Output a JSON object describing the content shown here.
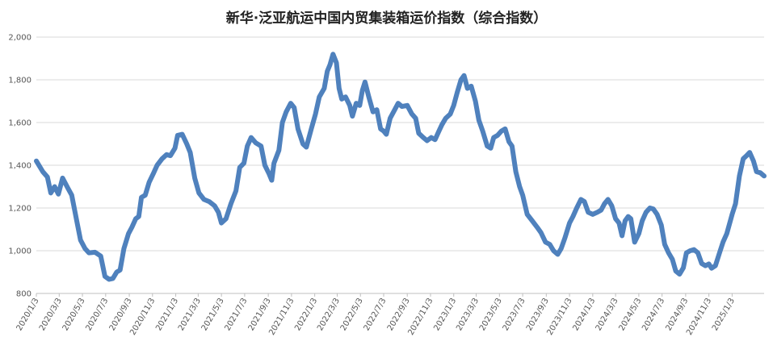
{
  "chart_data": {
    "type": "line",
    "title": "新华·泛亚航运中国内贸集装箱运价指数（综合指数）",
    "xlabel": "",
    "ylabel": "",
    "ylim": [
      800,
      2000
    ],
    "yticks": [
      "800",
      "1,000",
      "1,200",
      "1,400",
      "1,600",
      "1,800",
      "2,000"
    ],
    "xticks": [
      "2020/1/3",
      "2020/3/3",
      "2020/5/3",
      "2020/7/3",
      "2020/9/3",
      "2020/11/3",
      "2021/1/3",
      "2021/3/3",
      "2021/5/3",
      "2021/7/3",
      "2021/9/3",
      "2021/11/3",
      "2022/1/3",
      "2022/3/3",
      "2022/5/3",
      "2022/7/3",
      "2022/9/3",
      "2022/11/3",
      "2023/1/3",
      "2023/3/3",
      "2023/5/3",
      "2023/7/3",
      "2023/9/3",
      "2023/11/3",
      "2024/1/3",
      "2024/3/3",
      "2024/5/3",
      "2024/7/3",
      "2024/9/3",
      "2024/11/3",
      "2025/1/3"
    ],
    "grid": true,
    "legend": "none",
    "line_color": "#4f81bd",
    "series": [
      {
        "points": [
          [
            "2020/1/3",
            1420
          ],
          [
            "2020/1/20",
            1370
          ],
          [
            "2020/2/1",
            1345
          ],
          [
            "2020/2/10",
            1270
          ],
          [
            "2020/2/20",
            1300
          ],
          [
            "2020/3/1",
            1265
          ],
          [
            "2020/3/12",
            1340
          ],
          [
            "2020/3/25",
            1295
          ],
          [
            "2020/4/5",
            1260
          ],
          [
            "2020/4/18",
            1140
          ],
          [
            "2020/4/28",
            1050
          ],
          [
            "2020/5/10",
            1010
          ],
          [
            "2020/5/20",
            990
          ],
          [
            "2020/6/5",
            993
          ],
          [
            "2020/6/20",
            975
          ],
          [
            "2020/7/1",
            880
          ],
          [
            "2020/7/12",
            866
          ],
          [
            "2020/7/22",
            870
          ],
          [
            "2020/8/1",
            900
          ],
          [
            "2020/8/10",
            910
          ],
          [
            "2020/8/20",
            1010
          ],
          [
            "2020/9/1",
            1080
          ],
          [
            "2020/9/10",
            1110
          ],
          [
            "2020/9/20",
            1150
          ],
          [
            "2020/9/28",
            1160
          ],
          [
            "2020/10/5",
            1250
          ],
          [
            "2020/10/15",
            1260
          ],
          [
            "2020/10/25",
            1320
          ],
          [
            "2020/11/5",
            1360
          ],
          [
            "2020/11/15",
            1400
          ],
          [
            "2020/11/28",
            1430
          ],
          [
            "2020/12/10",
            1450
          ],
          [
            "2020/12/20",
            1445
          ],
          [
            "2021/1/1",
            1480
          ],
          [
            "2021/1/8",
            1540
          ],
          [
            "2021/1/20",
            1545
          ],
          [
            "2021/2/1",
            1500
          ],
          [
            "2021/2/10",
            1460
          ],
          [
            "2021/2/22",
            1340
          ],
          [
            "2021/3/5",
            1270
          ],
          [
            "2021/3/18",
            1240
          ],
          [
            "2021/4/1",
            1230
          ],
          [
            "2021/4/15",
            1210
          ],
          [
            "2021/4/25",
            1180
          ],
          [
            "2021/5/3",
            1130
          ],
          [
            "2021/5/15",
            1150
          ],
          [
            "2021/5/28",
            1220
          ],
          [
            "2021/6/10",
            1280
          ],
          [
            "2021/6/20",
            1390
          ],
          [
            "2021/7/1",
            1410
          ],
          [
            "2021/7/10",
            1490
          ],
          [
            "2021/7/20",
            1530
          ],
          [
            "2021/8/1",
            1505
          ],
          [
            "2021/8/15",
            1490
          ],
          [
            "2021/8/25",
            1400
          ],
          [
            "2021/9/5",
            1360
          ],
          [
            "2021/9/12",
            1330
          ],
          [
            "2021/9/18",
            1410
          ],
          [
            "2021/10/1",
            1470
          ],
          [
            "2021/10/10",
            1600
          ],
          [
            "2021/10/20",
            1650
          ],
          [
            "2021/11/1",
            1690
          ],
          [
            "2021/11/10",
            1670
          ],
          [
            "2021/11/20",
            1570
          ],
          [
            "2021/12/3",
            1500
          ],
          [
            "2021/12/12",
            1485
          ],
          [
            "2021/12/25",
            1570
          ],
          [
            "2022/1/5",
            1640
          ],
          [
            "2022/1/15",
            1720
          ],
          [
            "2022/1/28",
            1760
          ],
          [
            "2022/2/5",
            1840
          ],
          [
            "2022/2/12",
            1870
          ],
          [
            "2022/2/20",
            1920
          ],
          [
            "2022/3/1",
            1880
          ],
          [
            "2022/3/8",
            1760
          ],
          [
            "2022/3/15",
            1710
          ],
          [
            "2022/3/25",
            1720
          ],
          [
            "2022/4/5",
            1680
          ],
          [
            "2022/4/12",
            1630
          ],
          [
            "2022/4/22",
            1690
          ],
          [
            "2022/5/1",
            1680
          ],
          [
            "2022/5/8",
            1750
          ],
          [
            "2022/5/15",
            1790
          ],
          [
            "2022/5/25",
            1720
          ],
          [
            "2022/6/5",
            1650
          ],
          [
            "2022/6/15",
            1660
          ],
          [
            "2022/6/25",
            1570
          ],
          [
            "2022/7/3",
            1560
          ],
          [
            "2022/7/10",
            1545
          ],
          [
            "2022/7/20",
            1620
          ],
          [
            "2022/8/1",
            1660
          ],
          [
            "2022/8/10",
            1690
          ],
          [
            "2022/8/20",
            1675
          ],
          [
            "2022/9/3",
            1680
          ],
          [
            "2022/9/15",
            1640
          ],
          [
            "2022/9/25",
            1620
          ],
          [
            "2022/10/3",
            1550
          ],
          [
            "2022/10/15",
            1530
          ],
          [
            "2022/10/25",
            1515
          ],
          [
            "2022/11/5",
            1530
          ],
          [
            "2022/11/15",
            1520
          ],
          [
            "2022/11/25",
            1560
          ],
          [
            "2022/12/3",
            1590
          ],
          [
            "2022/12/13",
            1620
          ],
          [
            "2022/12/25",
            1640
          ],
          [
            "2023/1/3",
            1680
          ],
          [
            "2023/1/12",
            1740
          ],
          [
            "2023/1/22",
            1800
          ],
          [
            "2023/1/30",
            1820
          ],
          [
            "2023/2/8",
            1760
          ],
          [
            "2023/2/18",
            1770
          ],
          [
            "2023/3/1",
            1700
          ],
          [
            "2023/3/10",
            1610
          ],
          [
            "2023/3/20",
            1560
          ],
          [
            "2023/4/1",
            1490
          ],
          [
            "2023/4/10",
            1480
          ],
          [
            "2023/4/18",
            1530
          ],
          [
            "2023/4/28",
            1540
          ],
          [
            "2023/5/8",
            1560
          ],
          [
            "2023/5/18",
            1570
          ],
          [
            "2023/5/28",
            1510
          ],
          [
            "2023/6/5",
            1490
          ],
          [
            "2023/6/15",
            1370
          ],
          [
            "2023/6/25",
            1300
          ],
          [
            "2023/7/3",
            1260
          ],
          [
            "2023/7/15",
            1170
          ],
          [
            "2023/7/28",
            1140
          ],
          [
            "2023/8/10",
            1110
          ],
          [
            "2023/8/20",
            1085
          ],
          [
            "2023/9/1",
            1040
          ],
          [
            "2023/9/12",
            1030
          ],
          [
            "2023/9/22",
            1000
          ],
          [
            "2023/10/3",
            983
          ],
          [
            "2023/10/12",
            1010
          ],
          [
            "2023/10/22",
            1060
          ],
          [
            "2023/11/3",
            1130
          ],
          [
            "2023/11/12",
            1160
          ],
          [
            "2023/11/22",
            1200
          ],
          [
            "2023/12/3",
            1240
          ],
          [
            "2023/12/12",
            1230
          ],
          [
            "2023/12/22",
            1180
          ],
          [
            "2024/1/3",
            1170
          ],
          [
            "2024/1/15",
            1180
          ],
          [
            "2024/1/25",
            1190
          ],
          [
            "2024/2/3",
            1220
          ],
          [
            "2024/2/12",
            1240
          ],
          [
            "2024/2/22",
            1210
          ],
          [
            "2024/3/3",
            1150
          ],
          [
            "2024/3/12",
            1130
          ],
          [
            "2024/3/20",
            1070
          ],
          [
            "2024/3/28",
            1140
          ],
          [
            "2024/4/5",
            1160
          ],
          [
            "2024/4/12",
            1150
          ],
          [
            "2024/4/22",
            1040
          ],
          [
            "2024/5/3",
            1080
          ],
          [
            "2024/5/12",
            1140
          ],
          [
            "2024/5/22",
            1180
          ],
          [
            "2024/6/1",
            1200
          ],
          [
            "2024/6/10",
            1195
          ],
          [
            "2024/6/20",
            1170
          ],
          [
            "2024/7/1",
            1120
          ],
          [
            "2024/7/10",
            1030
          ],
          [
            "2024/7/20",
            990
          ],
          [
            "2024/7/30",
            960
          ],
          [
            "2024/8/8",
            905
          ],
          [
            "2024/8/18",
            890
          ],
          [
            "2024/8/28",
            920
          ],
          [
            "2024/9/5",
            990
          ],
          [
            "2024/9/15",
            1000
          ],
          [
            "2024/9/25",
            1005
          ],
          [
            "2024/10/5",
            990
          ],
          [
            "2024/10/15",
            940
          ],
          [
            "2024/10/25",
            930
          ],
          [
            "2024/11/3",
            938
          ],
          [
            "2024/11/10",
            918
          ],
          [
            "2024/11/20",
            930
          ],
          [
            "2024/12/1",
            990
          ],
          [
            "2024/12/10",
            1040
          ],
          [
            "2024/12/20",
            1080
          ],
          [
            "2025/1/3",
            1170
          ],
          [
            "2025/1/12",
            1220
          ],
          [
            "2025/1/22",
            1350
          ],
          [
            "2025/2/1",
            1430
          ],
          [
            "2025/2/10",
            1445
          ],
          [
            "2025/2/18",
            1460
          ],
          [
            "2025/2/28",
            1420
          ],
          [
            "2025/3/8",
            1370
          ],
          [
            "2025/3/18",
            1365
          ],
          [
            "2025/3/28",
            1350
          ]
        ]
      }
    ]
  }
}
